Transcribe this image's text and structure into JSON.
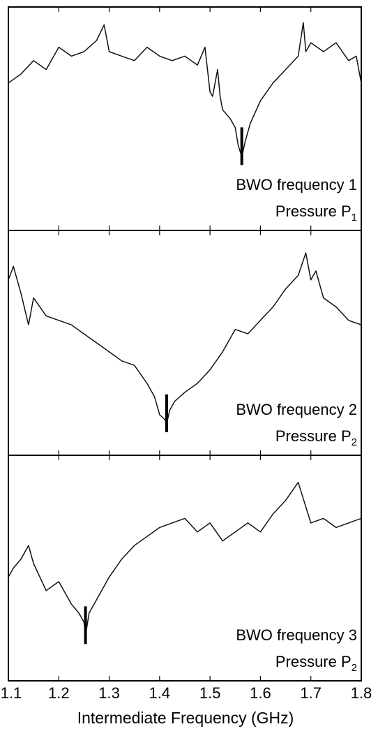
{
  "chart_data": {
    "type": "line",
    "xlabel": "Intermediate Frequency (GHz)",
    "xlim": [
      1.1,
      1.8
    ],
    "x_ticks": [
      "1.1",
      "1.2",
      "1.3",
      "1.4",
      "1.5",
      "1.6",
      "1.7",
      "1.8"
    ],
    "grid": false,
    "panels": [
      {
        "label_line1": "BWO frequency 1",
        "label_line2_text": "Pressure P",
        "label_line2_sub": "1",
        "marker_x": 1.563,
        "x": [
          1.1,
          1.125,
          1.15,
          1.175,
          1.2,
          1.225,
          1.25,
          1.275,
          1.29,
          1.3,
          1.325,
          1.35,
          1.375,
          1.4,
          1.425,
          1.45,
          1.475,
          1.49,
          1.5,
          1.505,
          1.515,
          1.52,
          1.525,
          1.54,
          1.55,
          1.556,
          1.563,
          1.57,
          1.58,
          1.6,
          1.625,
          1.65,
          1.675,
          1.685,
          1.69,
          1.7,
          1.725,
          1.75,
          1.775,
          1.79,
          1.8
        ],
        "y": [
          0.66,
          0.7,
          0.76,
          0.72,
          0.82,
          0.78,
          0.8,
          0.85,
          0.92,
          0.8,
          0.78,
          0.76,
          0.82,
          0.78,
          0.76,
          0.78,
          0.74,
          0.82,
          0.62,
          0.6,
          0.72,
          0.6,
          0.54,
          0.5,
          0.46,
          0.38,
          0.33,
          0.4,
          0.48,
          0.58,
          0.66,
          0.72,
          0.78,
          0.93,
          0.8,
          0.84,
          0.8,
          0.84,
          0.76,
          0.78,
          0.66
        ]
      },
      {
        "label_line1": "BWO frequency 2",
        "label_line2_text": "Pressure P",
        "label_line2_sub": "2",
        "marker_x": 1.414,
        "x": [
          1.1,
          1.11,
          1.125,
          1.14,
          1.15,
          1.175,
          1.2,
          1.225,
          1.25,
          1.275,
          1.3,
          1.325,
          1.35,
          1.375,
          1.39,
          1.4,
          1.41,
          1.414,
          1.42,
          1.43,
          1.45,
          1.475,
          1.5,
          1.525,
          1.55,
          1.575,
          1.6,
          1.625,
          1.65,
          1.675,
          1.69,
          1.7,
          1.71,
          1.725,
          1.75,
          1.775,
          1.8
        ],
        "y": [
          0.78,
          0.84,
          0.72,
          0.58,
          0.7,
          0.62,
          0.6,
          0.58,
          0.54,
          0.5,
          0.46,
          0.42,
          0.4,
          0.32,
          0.26,
          0.18,
          0.16,
          0.14,
          0.2,
          0.24,
          0.28,
          0.32,
          0.38,
          0.46,
          0.56,
          0.54,
          0.6,
          0.66,
          0.74,
          0.8,
          0.9,
          0.78,
          0.82,
          0.7,
          0.66,
          0.6,
          0.58
        ]
      },
      {
        "label_line1": "BWO frequency 3",
        "label_line2_text": "Pressure P",
        "label_line2_sub": "2",
        "marker_x": 1.253,
        "x": [
          1.1,
          1.11,
          1.125,
          1.14,
          1.15,
          1.175,
          1.2,
          1.225,
          1.24,
          1.25,
          1.253,
          1.26,
          1.275,
          1.3,
          1.325,
          1.35,
          1.375,
          1.4,
          1.425,
          1.45,
          1.475,
          1.5,
          1.525,
          1.55,
          1.575,
          1.6,
          1.625,
          1.65,
          1.675,
          1.7,
          1.725,
          1.75,
          1.775,
          1.8
        ],
        "y": [
          0.46,
          0.5,
          0.54,
          0.6,
          0.52,
          0.4,
          0.44,
          0.34,
          0.3,
          0.26,
          0.2,
          0.3,
          0.36,
          0.46,
          0.54,
          0.6,
          0.64,
          0.68,
          0.7,
          0.72,
          0.66,
          0.7,
          0.62,
          0.66,
          0.7,
          0.66,
          0.74,
          0.8,
          0.88,
          0.7,
          0.72,
          0.68,
          0.7,
          0.72
        ]
      }
    ]
  }
}
